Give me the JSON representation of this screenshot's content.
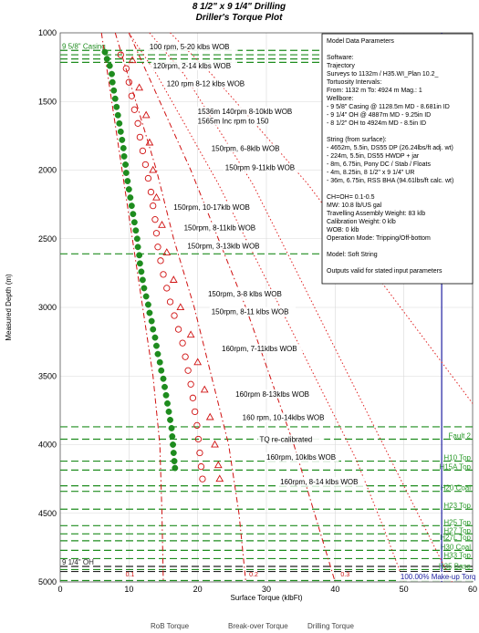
{
  "chart_data": {
    "type": "scatter",
    "title": "8 1/2\" x 9 1/4\" Drilling",
    "subtitle": "Driller's Torque Plot",
    "xlabel": "Surface Torque (klbFt)",
    "ylabel": "Measured Depth (m)",
    "xlim": [
      0,
      60
    ],
    "ylim": [
      5000,
      1000
    ],
    "y_inverted": true,
    "grid": true,
    "x_ticks": [
      "0",
      "10",
      "20",
      "30",
      "40",
      "50",
      "60"
    ],
    "y_ticks": [
      "1000",
      "1500",
      "2000",
      "2500",
      "3000",
      "3500",
      "4000",
      "4500",
      "5000"
    ],
    "legend": {
      "placement": "bottom",
      "entries": [
        "RoB Torque",
        "Break-over Torque",
        "Drilling Torque"
      ]
    },
    "series": [
      {
        "name": "RoB Torque",
        "marker": "filled-circle",
        "color": "#1e8c1e",
        "points": [
          [
            6.5,
            1140
          ],
          [
            6.8,
            1190
          ],
          [
            7.2,
            1240
          ],
          [
            7.5,
            1300
          ],
          [
            7.6,
            1360
          ],
          [
            7.8,
            1420
          ],
          [
            8.0,
            1480
          ],
          [
            8.2,
            1540
          ],
          [
            8.4,
            1600
          ],
          [
            8.6,
            1660
          ],
          [
            8.8,
            1720
          ],
          [
            9.0,
            1780
          ],
          [
            9.2,
            1840
          ],
          [
            9.3,
            1900
          ],
          [
            9.5,
            1960
          ],
          [
            9.6,
            2020
          ],
          [
            9.8,
            2080
          ],
          [
            10.0,
            2140
          ],
          [
            10.2,
            2200
          ],
          [
            10.4,
            2260
          ],
          [
            10.6,
            2320
          ],
          [
            10.8,
            2380
          ],
          [
            11.0,
            2440
          ],
          [
            11.2,
            2500
          ],
          [
            11.3,
            2560
          ],
          [
            11.5,
            2620
          ],
          [
            11.6,
            2680
          ],
          [
            11.8,
            2740
          ],
          [
            12.0,
            2800
          ],
          [
            12.2,
            2860
          ],
          [
            12.5,
            2920
          ],
          [
            12.8,
            2980
          ],
          [
            13.0,
            3040
          ],
          [
            13.3,
            3100
          ],
          [
            13.5,
            3160
          ],
          [
            13.8,
            3220
          ],
          [
            14.0,
            3280
          ],
          [
            14.2,
            3340
          ],
          [
            14.5,
            3400
          ],
          [
            14.7,
            3460
          ],
          [
            15.0,
            3520
          ],
          [
            15.2,
            3580
          ],
          [
            15.4,
            3640
          ],
          [
            15.6,
            3700
          ],
          [
            15.8,
            3760
          ],
          [
            16.0,
            3820
          ],
          [
            16.2,
            3880
          ],
          [
            16.3,
            3940
          ],
          [
            16.4,
            4000
          ],
          [
            16.5,
            4060
          ],
          [
            16.6,
            4120
          ],
          [
            16.7,
            4170
          ]
        ]
      },
      {
        "name": "Break-over Torque",
        "marker": "open-circle",
        "color": "#d01010",
        "points": [
          [
            8.8,
            1160
          ],
          [
            9.6,
            1260
          ],
          [
            10.0,
            1360
          ],
          [
            10.4,
            1460
          ],
          [
            10.8,
            1560
          ],
          [
            11.3,
            1660
          ],
          [
            11.6,
            1760
          ],
          [
            12.0,
            1860
          ],
          [
            12.4,
            1960
          ],
          [
            12.8,
            2060
          ],
          [
            13.2,
            2160
          ],
          [
            13.5,
            2260
          ],
          [
            13.8,
            2360
          ],
          [
            14.0,
            2460
          ],
          [
            14.2,
            2560
          ],
          [
            14.6,
            2660
          ],
          [
            15.0,
            2760
          ],
          [
            15.5,
            2860
          ],
          [
            16.0,
            2960
          ],
          [
            16.6,
            3060
          ],
          [
            17.2,
            3160
          ],
          [
            17.8,
            3260
          ],
          [
            18.2,
            3360
          ],
          [
            18.6,
            3460
          ],
          [
            19.0,
            3560
          ],
          [
            19.3,
            3660
          ],
          [
            19.6,
            3760
          ],
          [
            19.9,
            3860
          ],
          [
            20.1,
            3960
          ],
          [
            20.3,
            4060
          ],
          [
            20.5,
            4160
          ],
          [
            20.7,
            4250
          ]
        ]
      },
      {
        "name": "Drilling Torque",
        "marker": "open-triangle",
        "color": "#d01010",
        "points": [
          [
            10.5,
            1200
          ],
          [
            11.5,
            1400
          ],
          [
            12.5,
            1600
          ],
          [
            13.0,
            1800
          ],
          [
            13.5,
            2000
          ],
          [
            14.0,
            2200
          ],
          [
            14.8,
            2400
          ],
          [
            15.5,
            2600
          ],
          [
            16.5,
            2800
          ],
          [
            17.5,
            3000
          ],
          [
            19.0,
            3200
          ],
          [
            20.0,
            3400
          ],
          [
            21.0,
            3600
          ],
          [
            21.8,
            3800
          ],
          [
            22.5,
            4000
          ],
          [
            23.0,
            4150
          ],
          [
            23.2,
            4250
          ]
        ]
      },
      {
        "name": "FF 0.1",
        "line": "dash-dot",
        "color": "#d01010",
        "points": [
          [
            6.0,
            1000
          ],
          [
            7.5,
            1500
          ],
          [
            9.0,
            2000
          ],
          [
            10.5,
            2500
          ],
          [
            12.0,
            3000
          ],
          [
            13.5,
            3500
          ],
          [
            14.5,
            4000
          ],
          [
            14.8,
            4500
          ],
          [
            15.0,
            5000
          ]
        ]
      },
      {
        "name": "FF 0.2",
        "line": "dash-dot",
        "color": "#d01010",
        "points": [
          [
            8.0,
            1000
          ],
          [
            11.0,
            1500
          ],
          [
            14.0,
            2000
          ],
          [
            16.5,
            2500
          ],
          [
            19.5,
            3000
          ],
          [
            22.0,
            3500
          ],
          [
            24.5,
            4000
          ],
          [
            26.0,
            4500
          ],
          [
            27.0,
            5000
          ]
        ]
      },
      {
        "name": "FF 0.3",
        "line": "dash-dot",
        "color": "#d01010",
        "points": [
          [
            10.0,
            1000
          ],
          [
            14.5,
            1500
          ],
          [
            19.0,
            2000
          ],
          [
            23.0,
            2500
          ],
          [
            27.0,
            3000
          ],
          [
            30.5,
            3500
          ],
          [
            34.0,
            4000
          ],
          [
            37.0,
            4500
          ],
          [
            40.0,
            5000
          ]
        ]
      },
      {
        "name": "Make-up Torque",
        "line": "solid",
        "color": "#1f1fa0",
        "points": [
          [
            55.5,
            1000
          ],
          [
            55.5,
            5000
          ]
        ]
      },
      {
        "name": "Red bound 1",
        "line": "dotted",
        "color": "#e02020",
        "points": [
          [
            13.0,
            1000
          ],
          [
            18.0,
            1300
          ],
          [
            23.0,
            1700
          ],
          [
            28.0,
            2100
          ],
          [
            33.0,
            2600
          ],
          [
            38.0,
            3100
          ],
          [
            43.0,
            3600
          ],
          [
            48.0,
            4100
          ],
          [
            53.0,
            4600
          ],
          [
            57.0,
            5000
          ]
        ]
      },
      {
        "name": "Red bound 2",
        "line": "dotted",
        "color": "#e02020",
        "points": [
          [
            16.0,
            1000
          ],
          [
            22.0,
            1300
          ],
          [
            29.0,
            1700
          ],
          [
            36.0,
            2100
          ],
          [
            42.0,
            2500
          ],
          [
            48.0,
            2900
          ],
          [
            54.0,
            3300
          ],
          [
            60.0,
            3700
          ]
        ]
      },
      {
        "name": "Red bound 3",
        "line": "dotted",
        "color": "#e02020",
        "points": [
          [
            10.0,
            1000
          ],
          [
            14.0,
            1300
          ],
          [
            18.5,
            1700
          ],
          [
            23.0,
            2100
          ],
          [
            27.0,
            2500
          ],
          [
            31.0,
            2900
          ],
          [
            35.0,
            3300
          ],
          [
            39.0,
            3700
          ],
          [
            43.0,
            4100
          ],
          [
            47.0,
            4600
          ],
          [
            50.0,
            5000
          ]
        ]
      }
    ],
    "ff_labels": [
      {
        "text": "0.1",
        "x": 9.5,
        "y": 4960
      },
      {
        "text": "0.2",
        "x": 27.5,
        "y": 4960
      },
      {
        "text": "0.3",
        "x": 40.8,
        "y": 4960
      }
    ],
    "depth_markers": [
      {
        "depth": 1128,
        "label": "9 5/8\" Casing",
        "color": "#1e8c1e",
        "label_side": "left"
      },
      {
        "depth": 1160,
        "label": "",
        "color": "#1e8c1e"
      },
      {
        "depth": 1190,
        "label": "",
        "color": "#1e8c1e"
      },
      {
        "depth": 1215,
        "label": "",
        "color": "#1e8c1e"
      },
      {
        "depth": 2610,
        "label": "",
        "color": "#1e8c1e"
      },
      {
        "depth": 3870,
        "label": "",
        "color": "#1e8c1e"
      },
      {
        "depth": 3960,
        "label": "Fault 2",
        "color": "#1e8c1e",
        "label_side": "right"
      },
      {
        "depth": 4120,
        "label": "H10 Top",
        "color": "#1e8c1e",
        "label_side": "right"
      },
      {
        "depth": 4185,
        "label": "H15A Top",
        "color": "#1e8c1e",
        "label_side": "right"
      },
      {
        "depth": 4300,
        "label": "",
        "color": "#1e8c1e"
      },
      {
        "depth": 4340,
        "label": "H20 Coal",
        "color": "#1e8c1e",
        "label_side": "right"
      },
      {
        "depth": 4470,
        "label": "H23 Top",
        "color": "#1e8c1e",
        "label_side": "right"
      },
      {
        "depth": 4590,
        "label": "H25 Top",
        "color": "#1e8c1e",
        "label_side": "right"
      },
      {
        "depth": 4650,
        "label": "H27 Top",
        "color": "#1e8c1e",
        "label_side": "right"
      },
      {
        "depth": 4700,
        "label": "H27L Top",
        "color": "#1e8c1e",
        "label_side": "right"
      },
      {
        "depth": 4770,
        "label": "H30 Coal",
        "color": "#1e8c1e",
        "label_side": "right"
      },
      {
        "depth": 4830,
        "label": "H33 Top",
        "color": "#1e8c1e",
        "label_side": "right"
      },
      {
        "depth": 4887,
        "label": "9 1/4\" OH",
        "color": "#222222",
        "label_side": "left"
      },
      {
        "depth": 4910,
        "label": "H35 Base",
        "color": "#1e8c1e",
        "label_side": "right"
      },
      {
        "depth": 4924,
        "label": "",
        "color": "#222222"
      },
      {
        "depth": 4990,
        "label": "H40 Coal",
        "color": "#1e8c1e",
        "label_side": "right"
      }
    ],
    "annotations": [
      {
        "text": "100 rpm, 5-20 klbs WOB",
        "x": 13.0,
        "y": 1120
      },
      {
        "text": "120rpm, 2-14 klbs WOB",
        "x": 13.5,
        "y": 1260
      },
      {
        "text": "120 rpm 8-12 klbs WOB",
        "x": 15.5,
        "y": 1390
      },
      {
        "text": "1536m 140rpm 8-10klb WOB",
        "x": 20.0,
        "y": 1590
      },
      {
        "text": "1565m Inc rpm to 150",
        "x": 20.0,
        "y": 1660
      },
      {
        "text": "150rpm, 6-8klb WOB",
        "x": 22.0,
        "y": 1860
      },
      {
        "text": "150rpm 9-11klb WOB",
        "x": 24.0,
        "y": 2000
      },
      {
        "text": "150rpm, 10-17klb WOB",
        "x": 16.5,
        "y": 2290
      },
      {
        "text": "150rpm, 8-11klb WOB",
        "x": 18.0,
        "y": 2440
      },
      {
        "text": "150rpm, 3-13klb WOB",
        "x": 18.5,
        "y": 2570
      },
      {
        "text": "150rpm, 3-8 klbs WOB",
        "x": 21.5,
        "y": 2920
      },
      {
        "text": "150rpm, 8-11 klbs WOB",
        "x": 22.0,
        "y": 3050
      },
      {
        "text": "160rpm, 7-11klbs WOB",
        "x": 23.5,
        "y": 3320
      },
      {
        "text": "160rpm 8-13klbs WOB",
        "x": 25.5,
        "y": 3650
      },
      {
        "text": "160 rpm, 10-14klbs WOB",
        "x": 26.5,
        "y": 3820
      },
      {
        "text": "TQ re-calibrated",
        "x": 29.0,
        "y": 3980
      },
      {
        "text": "160rpm, 10klbs WOB",
        "x": 30.0,
        "y": 4110
      },
      {
        "text": "160rpm, 8-14 klbs WOB",
        "x": 32.0,
        "y": 4290
      },
      {
        "text": "100.00% Make-up Torq",
        "x": 49.5,
        "y": 4980
      }
    ],
    "info_box": {
      "lines": [
        "Model Data Parameters",
        "",
        "Software:",
        "Trajectory",
        "Surveys to 1132m / H35.WI_Plan 10.2_",
        "Tortuosity Intervals:",
        "From: 1132 m To: 4924 m Mag.: 1",
        "Wellbore:",
        "- 9 5/8\" Casing  @ 1128.5m MD - 8.681in ID",
        "- 9 1/4\" OH @ 4887m MD - 9.25in ID",
        "- 8 1/2\" OH to 4924m MD - 8.5in ID",
        "",
        "String (from surface):",
        "- 4652m, 5.5in, DS55 DP  (26.24lbs/ft adj. wt)",
        "- 224m, 5.5in, DS55 HWDP + jar",
        "- 8m, 6.75in, Pony DC / Stab / Floats",
        "- 4m, 8.25in, 8 1/2\" x 9 1/4\" UR",
        "- 36m, 6.75in, RSS BHA (94.61lbs/ft calc. wt)",
        "",
        "CH=OH= 0.1-0.5",
        "MW: 10.8 lb/US gal",
        "Travelling Assembly Weight: 83 klb",
        "Calibration Weight: 0 klb",
        "WOB: 0 klb",
        "Operation Mode: Tripping/Off-bottom",
        "",
        "Model: Soft String",
        "",
        "Outputs valid for stated input parameters"
      ]
    }
  }
}
